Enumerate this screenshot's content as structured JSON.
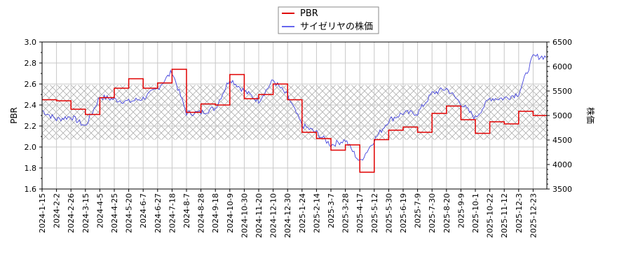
{
  "legend": {
    "items": [
      {
        "label": "PBR",
        "color": "#e00000"
      },
      {
        "label": "サイゼリヤの株価",
        "color": "#5555ee"
      }
    ]
  },
  "axes": {
    "left_label": "PBR",
    "right_label": "株価",
    "left_ticks": [
      "1.6",
      "1.8",
      "2.0",
      "2.2",
      "2.4",
      "2.6",
      "2.8",
      "3.0"
    ],
    "right_ticks": [
      "3500",
      "4000",
      "4500",
      "5000",
      "5500",
      "6000",
      "6500"
    ],
    "x_ticks": [
      "2024-1-15",
      "2024-2-2",
      "2024-2-26",
      "2024-3-15",
      "2024-4-5",
      "2024-4-25",
      "2024-5-20",
      "2024-6-7",
      "2024-6-27",
      "2024-7-18",
      "2024-8-7",
      "2024-8-28",
      "2024-9-18",
      "2024-10-9",
      "2024-10-30",
      "2024-11-20",
      "2024-12-10",
      "2024-12-30",
      "2025-1-24",
      "2025-2-14",
      "2025-3-7",
      "2025-3-28",
      "2025-4-17",
      "2025-5-12",
      "2025-5-30",
      "2025-6-19",
      "2025-7-9",
      "2025-7-30",
      "2025-8-20",
      "2025-9-9",
      "2025-10-1",
      "2025-10-22",
      "2025-11-12",
      "2025-12-3",
      "2025-12-23"
    ]
  },
  "chart_data": {
    "type": "line",
    "title": "",
    "xlabel": "",
    "ylabel": "PBR",
    "ylabel_right": "株価",
    "ylim": [
      1.6,
      3.0
    ],
    "ylim_right": [
      3500,
      6500
    ],
    "grid": true,
    "legend_position": "top-center",
    "shaded_band_pbr": [
      2.07,
      2.59
    ],
    "categories": [
      "2024-1-15",
      "2024-2-2",
      "2024-2-26",
      "2024-3-15",
      "2024-4-5",
      "2024-4-25",
      "2024-5-20",
      "2024-6-7",
      "2024-6-27",
      "2024-7-18",
      "2024-8-7",
      "2024-8-28",
      "2024-9-18",
      "2024-10-9",
      "2024-10-30",
      "2024-11-20",
      "2024-12-10",
      "2024-12-30",
      "2025-1-24",
      "2025-2-14",
      "2025-3-7",
      "2025-3-28",
      "2025-4-17",
      "2025-5-12",
      "2025-5-30",
      "2025-6-19",
      "2025-7-9",
      "2025-7-30",
      "2025-8-20",
      "2025-9-9",
      "2025-10-1",
      "2025-10-22",
      "2025-11-12",
      "2025-12-3",
      "2025-12-23"
    ],
    "series": [
      {
        "name": "PBR",
        "axis": "left",
        "color": "#e00000",
        "values": [
          2.45,
          2.44,
          2.36,
          2.31,
          2.47,
          2.56,
          2.65,
          2.56,
          2.61,
          2.74,
          2.33,
          2.41,
          2.4,
          2.69,
          2.46,
          2.5,
          2.6,
          2.45,
          2.14,
          2.08,
          1.97,
          2.02,
          1.76,
          2.07,
          2.16,
          2.19,
          2.14,
          2.32,
          2.39,
          2.26,
          2.13,
          2.24,
          2.22,
          2.34,
          2.3
        ]
      },
      {
        "name": "サイゼリヤの株価",
        "axis": "right",
        "color": "#5555ee",
        "values": [
          5100,
          4920,
          4980,
          4780,
          5380,
          5330,
          5280,
          5350,
          5550,
          5900,
          5050,
          5060,
          5150,
          5750,
          5500,
          5300,
          5720,
          5400,
          4800,
          4650,
          4400,
          4500,
          4050,
          4500,
          4900,
          5050,
          5050,
          5450,
          5550,
          5250,
          4950,
          5350,
          5350,
          5450,
          6200
        ]
      }
    ]
  }
}
